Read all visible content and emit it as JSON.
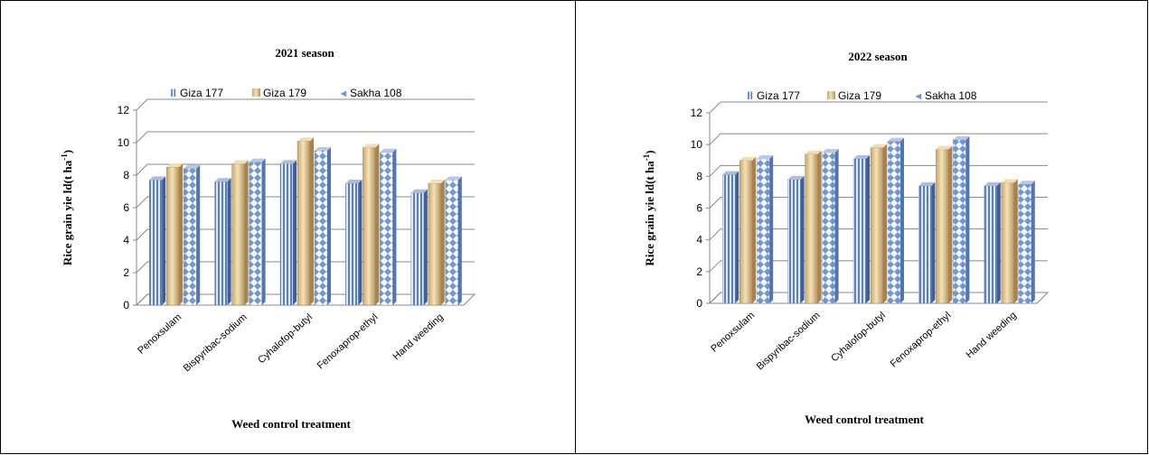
{
  "chart_data": [
    {
      "type": "bar",
      "title": "2021 season",
      "xlabel": "Weed control treatment",
      "ylabel_main": "Rice grain yie ld(t ha",
      "ylabel_sup": "-1",
      "ylabel_close": ")",
      "ylim": [
        0,
        12
      ],
      "yticks": [
        "0",
        "2",
        "4",
        "6",
        "8",
        "10",
        "12"
      ],
      "categories": [
        "Penoxsulam",
        "Bispyribac-sodium",
        "Cyhalofop-butyl",
        "Fenoxaprop-ethyl",
        "Hand weeding"
      ],
      "series": [
        {
          "name": "Giza 177",
          "values": [
            7.7,
            7.6,
            8.7,
            7.5,
            6.9
          ]
        },
        {
          "name": "Giza 179",
          "values": [
            8.5,
            8.7,
            10.1,
            9.7,
            7.5
          ]
        },
        {
          "name": "Sakha 108",
          "values": [
            8.4,
            8.8,
            9.5,
            9.4,
            7.7
          ]
        }
      ]
    },
    {
      "type": "bar",
      "title": "2022 season",
      "xlabel": "Weed control treatment",
      "ylabel_main": "Rice grain yie ld(t ha",
      "ylabel_sup": "-1",
      "ylabel_close": ")",
      "ylim": [
        0,
        12
      ],
      "yticks": [
        "0",
        "2",
        "4",
        "6",
        "8",
        "10",
        "12"
      ],
      "categories": [
        "Penoxsulam",
        "Bispyribac-sodium",
        "Cyhalofop-butyl",
        "Fenoxaprop-ethyl",
        "Hand weeding"
      ],
      "series": [
        {
          "name": "Giza 177",
          "values": [
            8.1,
            7.8,
            9.1,
            7.4,
            7.4
          ]
        },
        {
          "name": "Giza 179",
          "values": [
            9.0,
            9.4,
            9.8,
            9.7,
            7.6
          ]
        },
        {
          "name": "Sakha 108",
          "values": [
            9.1,
            9.5,
            10.2,
            10.3,
            7.5
          ]
        }
      ]
    }
  ],
  "legend_markers": [
    "I",
    "I",
    "◂"
  ],
  "colors": {
    "giza177": "#5b7fc4",
    "giza179": "#e8cf96",
    "sakha108": "#6f96d6",
    "grid": "#888888"
  }
}
